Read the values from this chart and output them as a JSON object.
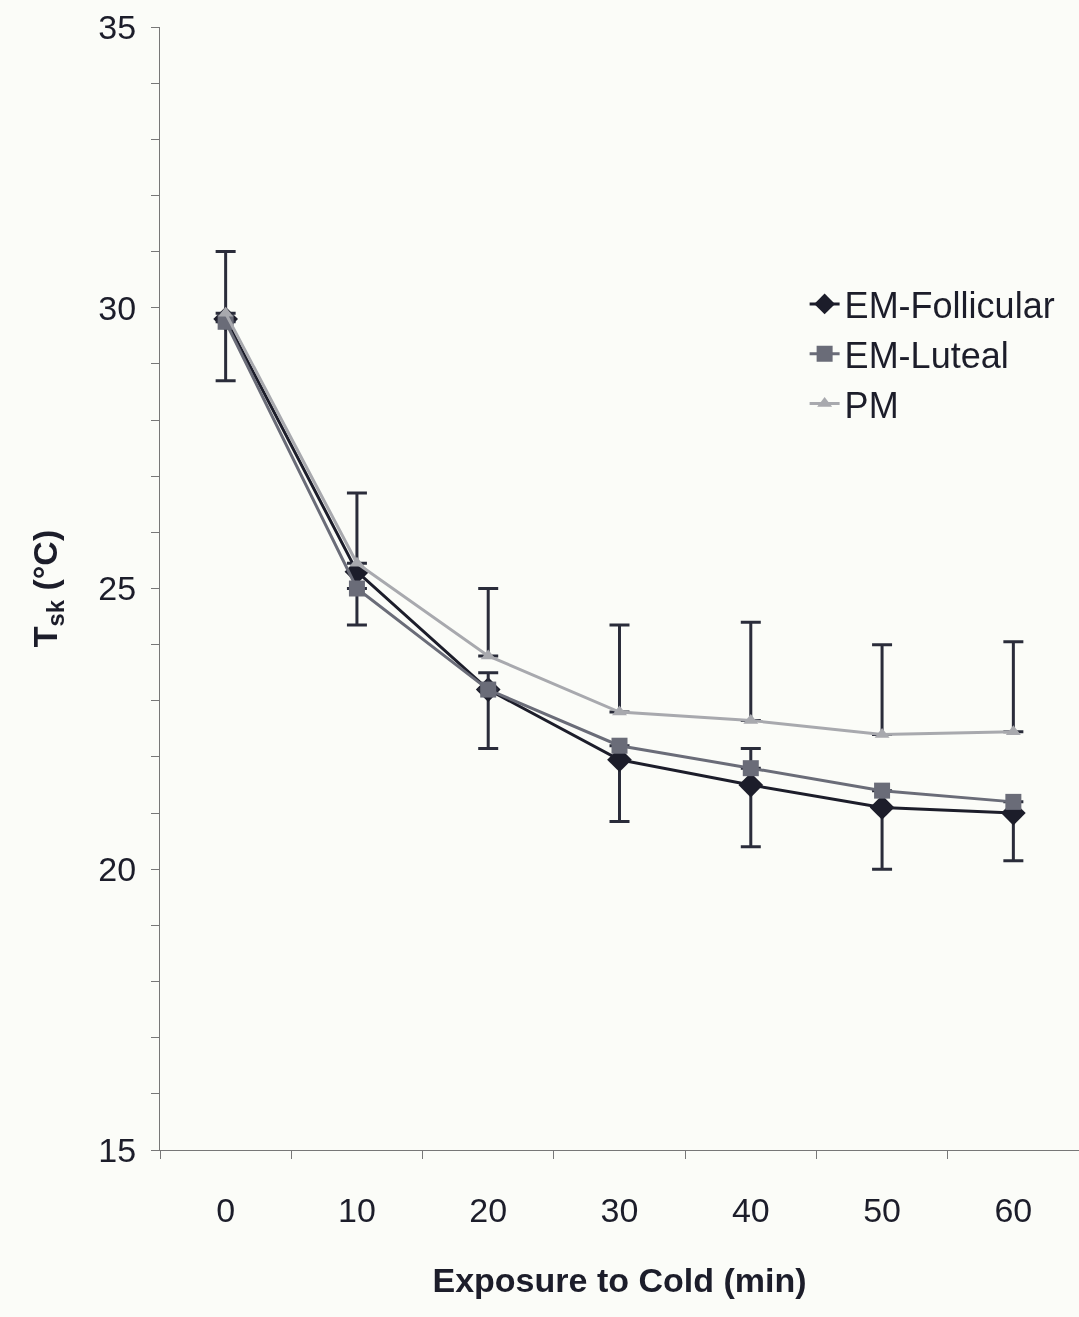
{
  "chart_data": {
    "type": "line",
    "xlabel": "Exposure to Cold (min)",
    "ylabel": "T$_{sk}$ (°C)",
    "categories": [
      "0",
      "10",
      "20",
      "30",
      "40",
      "50",
      "60"
    ],
    "series": [
      {
        "name": "EM-Follicular",
        "color": "#1c1d2a",
        "marker": "diamond",
        "values": [
          29.8,
          25.3,
          23.2,
          21.95,
          21.5,
          21.1,
          21.0
        ],
        "errors": [
          [
            28.7,
            29.8
          ],
          null,
          [
            22.15,
            23.2
          ],
          [
            20.85,
            21.95
          ],
          [
            20.4,
            21.5
          ],
          [
            20.0,
            21.1
          ],
          [
            20.15,
            21.0
          ]
        ]
      },
      {
        "name": "EM-Luteal",
        "color": "#6a6c78",
        "marker": "square",
        "values": [
          29.75,
          25.0,
          23.2,
          22.2,
          21.8,
          21.4,
          21.2
        ],
        "errors": [
          null,
          [
            24.35,
            25.0
          ],
          [
            23.2,
            23.5
          ],
          null,
          [
            21.8,
            22.15
          ],
          null,
          null
        ]
      },
      {
        "name": "PM",
        "color": "#a8a9ae",
        "marker": "triangle",
        "values": [
          29.9,
          25.45,
          23.8,
          22.8,
          22.65,
          22.4,
          22.45
        ],
        "errors": [
          [
            29.9,
            31.0
          ],
          [
            25.45,
            26.7
          ],
          [
            23.8,
            25.0
          ],
          [
            22.8,
            24.35
          ],
          [
            22.65,
            24.4
          ],
          [
            22.4,
            24.0
          ],
          [
            22.45,
            24.05
          ]
        ]
      }
    ],
    "ylim": [
      15,
      35
    ],
    "yticks": [
      15,
      {
        "value": 16,
        "label": null
      },
      {
        "value": 17,
        "label": null
      },
      {
        "value": 18,
        "label": null
      },
      {
        "value": 19,
        "label": null
      },
      20,
      {
        "value": 21,
        "label": null
      },
      {
        "value": 22,
        "label": null
      },
      {
        "value": 23,
        "label": null
      },
      {
        "value": 24,
        "label": null
      },
      25,
      {
        "value": 26,
        "label": null
      },
      {
        "value": 27,
        "label": null
      },
      {
        "value": 28,
        "label": null
      },
      {
        "value": 29,
        "label": null
      },
      30,
      {
        "value": 31,
        "label": null
      },
      {
        "value": 32,
        "label": null
      },
      {
        "value": 33,
        "label": null
      },
      {
        "value": 34,
        "label": null
      },
      35
    ],
    "grid": false,
    "legend": "top right",
    "line_style": "solid"
  }
}
